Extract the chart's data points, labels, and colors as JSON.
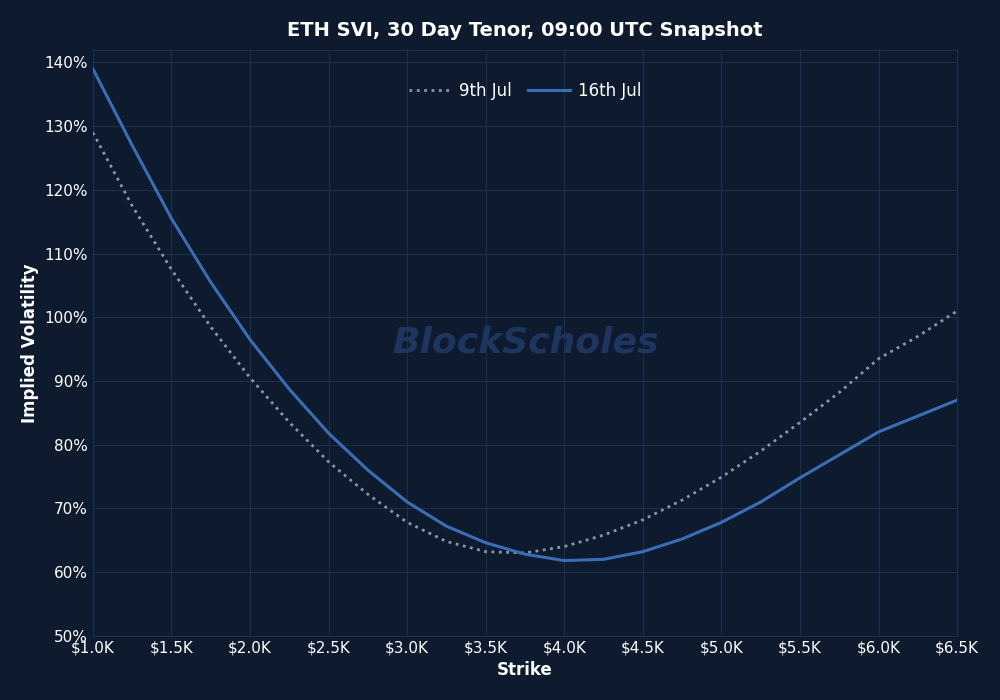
{
  "title": "ETH SVI, 30 Day Tenor, 09:00 UTC Snapshot",
  "xlabel": "Strike",
  "ylabel": "Implied Volatility",
  "background_color": "#0e1a2e",
  "axes_background": "#0e1a2e",
  "grid_color": "#1a3050",
  "text_color": "#ffffff",
  "xlim": [
    1000,
    6500
  ],
  "ylim": [
    0.5,
    1.42
  ],
  "xticks": [
    1000,
    1500,
    2000,
    2500,
    3000,
    3500,
    4000,
    4500,
    5000,
    5500,
    6000,
    6500
  ],
  "yticks": [
    0.5,
    0.6,
    0.7,
    0.8,
    0.9,
    1.0,
    1.1,
    1.2,
    1.3,
    1.4
  ],
  "series_9jul": {
    "label": "9th Jul",
    "color": "#8899aa",
    "linestyle": "dotted",
    "linewidth": 2.0,
    "x": [
      1000,
      1250,
      1500,
      1750,
      2000,
      2250,
      2500,
      2750,
      3000,
      3250,
      3500,
      3750,
      4000,
      4250,
      4500,
      4750,
      5000,
      5250,
      5500,
      5750,
      6000,
      6250,
      6500
    ],
    "y": [
      1.29,
      1.175,
      1.075,
      0.985,
      0.905,
      0.835,
      0.773,
      0.722,
      0.678,
      0.648,
      0.632,
      0.63,
      0.64,
      0.658,
      0.682,
      0.713,
      0.749,
      0.79,
      0.835,
      0.882,
      0.935,
      0.97,
      1.01
    ]
  },
  "series_16jul": {
    "label": "16th Jul",
    "color": "#3a6db5",
    "linestyle": "solid",
    "linewidth": 2.2,
    "x": [
      1000,
      1250,
      1500,
      1750,
      2000,
      2250,
      2500,
      2750,
      3000,
      3250,
      3500,
      3750,
      4000,
      4250,
      4500,
      4750,
      5000,
      5250,
      5500,
      5750,
      6000,
      6250,
      6500
    ],
    "y": [
      1.39,
      1.27,
      1.155,
      1.055,
      0.965,
      0.887,
      0.818,
      0.76,
      0.71,
      0.672,
      0.646,
      0.628,
      0.618,
      0.62,
      0.632,
      0.652,
      0.678,
      0.71,
      0.748,
      0.784,
      0.82,
      0.845,
      0.87
    ]
  },
  "watermark": "BlockScholes",
  "watermark_color": "#1e3560",
  "watermark_fontsize": 26,
  "title_fontsize": 14,
  "label_fontsize": 12,
  "tick_fontsize": 11
}
